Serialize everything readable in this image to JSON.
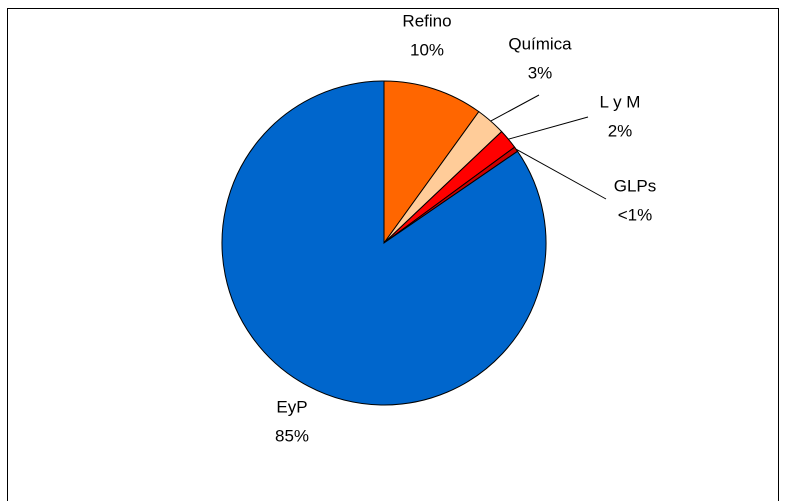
{
  "chart_data": {
    "type": "pie",
    "categories": [
      "Refino",
      "Química",
      "L y M",
      "GLPs",
      "EyP"
    ],
    "values": [
      10,
      3,
      2,
      0.5,
      85
    ],
    "value_labels": [
      "10%",
      "3%",
      "2%",
      "<1%",
      "85%"
    ],
    "colors": [
      "#ff6600",
      "#ffcc99",
      "#ff0000",
      "#cc0000",
      "#0066cc"
    ]
  }
}
